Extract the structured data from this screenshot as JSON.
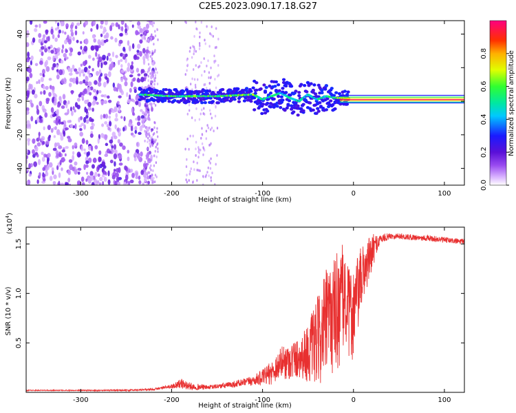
{
  "title": "C2E5.2023.090.17.18.G27",
  "chart_data": [
    {
      "type": "heatmap",
      "xlabel": "Height of straight line (km)",
      "ylabel": "Frequency (Hz)",
      "xlim": [
        -360,
        122
      ],
      "ylim": [
        -50,
        48
      ],
      "x_ticks": [
        "-300",
        "-200",
        "-100",
        "0",
        "100"
      ],
      "x_tick_values": [
        -300,
        -200,
        -100,
        0,
        100
      ],
      "y_ticks": [
        "40",
        "20",
        "0",
        "-20",
        "-40"
      ],
      "y_tick_values": [
        40,
        20,
        0,
        -20,
        -40
      ],
      "colorbar": {
        "label": "Normalized spectral amplitude",
        "range": [
          0,
          1
        ],
        "ticks": [
          "0.0",
          "0.2",
          "0.4",
          "0.6",
          "0.8"
        ],
        "tick_values": [
          0.0,
          0.2,
          0.4,
          0.6,
          0.8
        ]
      },
      "signal_track": {
        "x": [
          -235,
          -200,
          -150,
          -110,
          -100,
          -90,
          -80,
          -70,
          -60,
          -50,
          -40,
          -30,
          -20,
          -10,
          0,
          50,
          122
        ],
        "frequency": [
          4,
          3,
          3,
          4,
          1,
          3,
          5,
          2,
          0,
          4,
          1,
          3,
          2,
          2,
          1,
          1,
          1
        ],
        "amplitude": [
          0.55,
          0.6,
          0.6,
          0.65,
          0.5,
          0.55,
          0.5,
          0.5,
          0.5,
          0.5,
          0.5,
          0.55,
          0.6,
          0.7,
          0.85,
          0.9,
          0.92
        ]
      },
      "noise_region": [
        -360,
        -230
      ]
    },
    {
      "type": "line",
      "xlabel": "Height of straight line (km)",
      "ylabel": "SNR (10 * v/v)",
      "y_multiplier_label": "(x10",
      "y_multiplier_exp": "4",
      "xlim": [
        -360,
        122
      ],
      "ylim": [
        0,
        1.67
      ],
      "x_ticks": [
        "-300",
        "-200",
        "-100",
        "0",
        "100"
      ],
      "x_tick_values": [
        -300,
        -200,
        -100,
        0,
        100
      ],
      "y_ticks": [
        "1.5",
        "1.0",
        "0.5"
      ],
      "y_tick_values": [
        1.5,
        1.0,
        0.5
      ],
      "series": [
        {
          "color": "#e83030",
          "x": [
            -360,
            -300,
            -250,
            -220,
            -200,
            -190,
            -180,
            -160,
            -140,
            -120,
            -110,
            -100,
            -90,
            -80,
            -70,
            -60,
            -50,
            -40,
            -30,
            -20,
            -15,
            -10,
            -5,
            0,
            5,
            10,
            20,
            25,
            30,
            40,
            50,
            60,
            80,
            100,
            122
          ],
          "y": [
            0.02,
            0.02,
            0.02,
            0.03,
            0.06,
            0.09,
            0.06,
            0.05,
            0.07,
            0.1,
            0.12,
            0.15,
            0.2,
            0.3,
            0.32,
            0.35,
            0.4,
            0.5,
            0.7,
            0.8,
            0.9,
            0.95,
            0.8,
            0.8,
            1.0,
            1.2,
            1.4,
            1.5,
            1.55,
            1.58,
            1.58,
            1.57,
            1.56,
            1.54,
            1.52
          ],
          "spread": [
            0.005,
            0.005,
            0.008,
            0.01,
            0.02,
            0.05,
            0.04,
            0.02,
            0.03,
            0.04,
            0.05,
            0.08,
            0.12,
            0.16,
            0.2,
            0.2,
            0.3,
            0.45,
            0.55,
            0.6,
            0.65,
            0.5,
            0.45,
            0.5,
            0.4,
            0.3,
            0.2,
            0.1,
            0.05,
            0.03,
            0.03,
            0.03,
            0.03,
            0.03,
            0.03
          ]
        }
      ]
    }
  ]
}
